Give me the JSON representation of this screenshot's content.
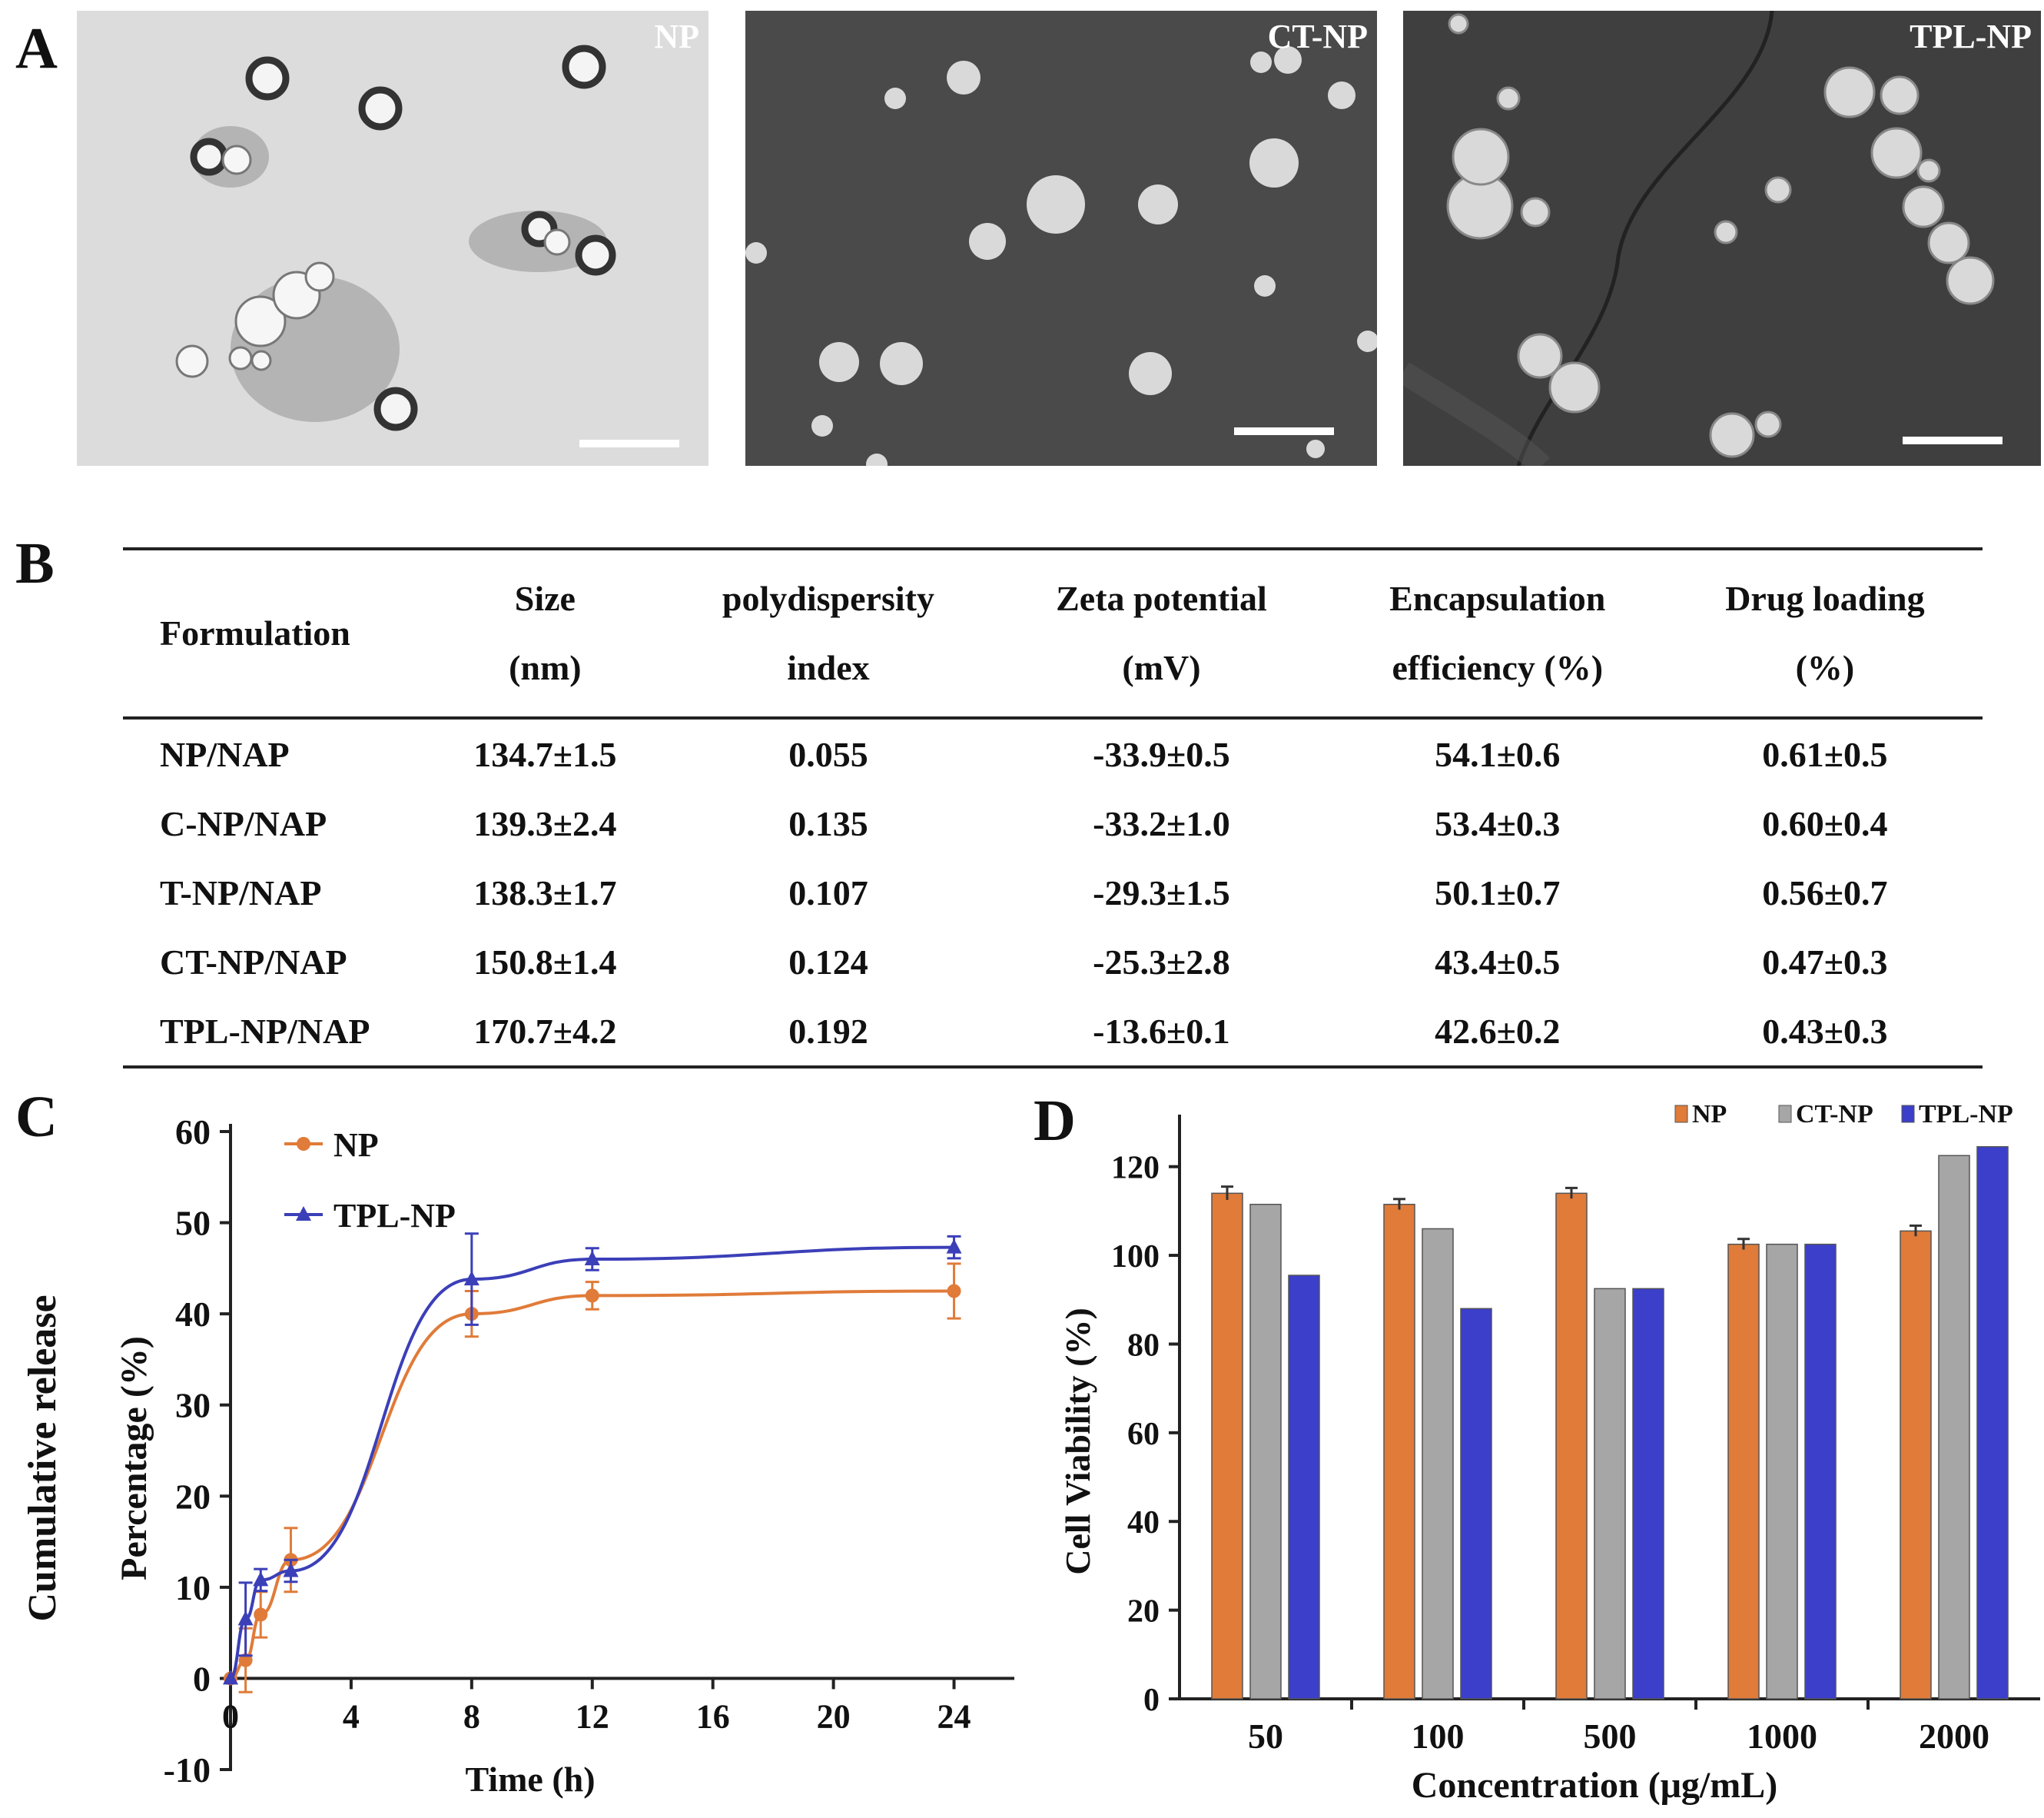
{
  "panels": {
    "A": "A",
    "B": "B",
    "C": "C",
    "D": "D"
  },
  "tem_images": [
    {
      "label": "NP"
    },
    {
      "label": "CT-NP"
    },
    {
      "label": "TPL-NP"
    }
  ],
  "table": {
    "headers": [
      [
        "Formulation"
      ],
      [
        "Size",
        "(nm)"
      ],
      [
        "polydispersity",
        "index"
      ],
      [
        "Zeta potential",
        "(mV)"
      ],
      [
        "Encapsulation",
        "efficiency (%)"
      ],
      [
        "Drug loading",
        "(%)"
      ]
    ],
    "rows": [
      [
        "NP/NAP",
        "134.7±1.5",
        "0.055",
        "-33.9±0.5",
        "54.1±0.6",
        "0.61±0.5"
      ],
      [
        "C-NP/NAP",
        "139.3±2.4",
        "0.135",
        "-33.2±1.0",
        "53.4±0.3",
        "0.60±0.4"
      ],
      [
        "T-NP/NAP",
        "138.3±1.7",
        "0.107",
        "-29.3±1.5",
        "50.1±0.7",
        "0.56±0.7"
      ],
      [
        "CT-NP/NAP",
        "150.8±1.4",
        "0.124",
        "-25.3±2.8",
        "43.4±0.5",
        "0.47±0.3"
      ],
      [
        "TPL-NP/NAP",
        "170.7±4.2",
        "0.192",
        "-13.6±0.1",
        "42.6±0.2",
        "0.43±0.3"
      ]
    ]
  },
  "chart_data": [
    {
      "type": "line",
      "panel": "C",
      "title": "",
      "xlabel": "Time (h)",
      "ylabel": "Percentage (%)",
      "ylabel_outer": "Cumulative release",
      "xlim": [
        0,
        26
      ],
      "ylim": [
        -10,
        60
      ],
      "xticks": [
        0,
        4,
        8,
        12,
        16,
        20,
        24
      ],
      "yticks": [
        -10,
        0,
        10,
        20,
        30,
        40,
        50,
        60
      ],
      "legend_position": "top-left",
      "series": [
        {
          "name": "NP",
          "color": "#e07b39",
          "marker": "circle",
          "x": [
            0,
            0.5,
            1,
            2,
            8,
            12,
            24
          ],
          "y": [
            0,
            2,
            7,
            13,
            40,
            42,
            42.5
          ],
          "err": [
            0,
            3.5,
            2.5,
            3.5,
            2.5,
            1.5,
            3.0
          ]
        },
        {
          "name": "TPL-NP",
          "color": "#3b3fb8",
          "marker": "triangle",
          "x": [
            0,
            0.5,
            1,
            2,
            8,
            12,
            24
          ],
          "y": [
            0,
            6.5,
            10.8,
            11.8,
            43.8,
            46,
            47.3
          ],
          "err": [
            0,
            4,
            1.2,
            1.2,
            5,
            1.2,
            1.2
          ]
        }
      ]
    },
    {
      "type": "bar",
      "panel": "D",
      "title": "",
      "xlabel": "Concentration (μg/mL)",
      "ylabel": "Cell Viability (%)",
      "ylim": [
        0,
        130
      ],
      "yticks": [
        0,
        20,
        40,
        60,
        80,
        100,
        120
      ],
      "legend_position": "top-right",
      "categories": [
        "50",
        "100",
        "500",
        "1000",
        "2000"
      ],
      "series": [
        {
          "name": "NP",
          "color": "#e07b39",
          "values": [
            114,
            111.5,
            114,
            102.5,
            105.5
          ],
          "err": [
            1.5,
            1.2,
            1.2,
            1.2,
            1.2
          ]
        },
        {
          "name": "CT-NP",
          "color": "#a6a6a6",
          "values": [
            111.5,
            106,
            92.5,
            102.5,
            122.5
          ],
          "err": [
            0,
            0,
            0,
            0,
            0
          ]
        },
        {
          "name": "TPL-NP",
          "color": "#3b3fc9",
          "values": [
            95.5,
            88,
            92.5,
            102.5,
            124.5
          ],
          "err": [
            0,
            0,
            0,
            0,
            0
          ]
        }
      ]
    }
  ]
}
